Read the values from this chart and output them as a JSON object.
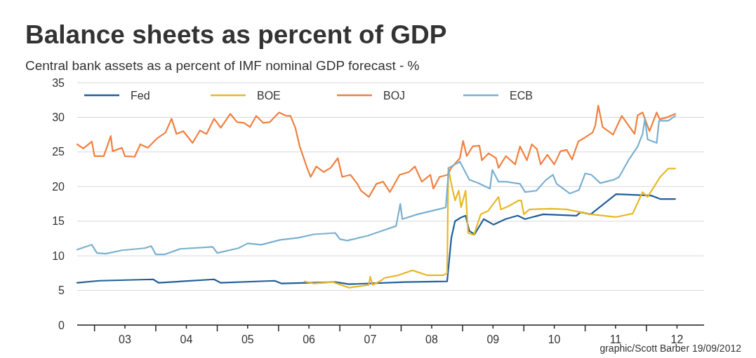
{
  "chart_data": {
    "type": "line",
    "title": "Balance sheets as percent of GDP",
    "subtitle": "Central bank assets as a percent of IMF nominal GDP forecast - %",
    "annotations": [
      "graphic/Scott Barber 19/09/2012"
    ],
    "xlim": [
      "2002-09-20",
      "2012-12-09"
    ],
    "xticks": [
      {
        "value": "2003-01-01",
        "label": null
      },
      {
        "value": "2003-07-01",
        "label": "03"
      },
      {
        "value": "2004-01-01",
        "label": null
      },
      {
        "value": "2004-07-01",
        "label": "04"
      },
      {
        "value": "2005-01-01",
        "label": null
      },
      {
        "value": "2005-07-01",
        "label": "05"
      },
      {
        "value": "2006-01-01",
        "label": null
      },
      {
        "value": "2006-07-01",
        "label": "06"
      },
      {
        "value": "2007-01-01",
        "label": null
      },
      {
        "value": "2007-07-01",
        "label": "07"
      },
      {
        "value": "2008-01-01",
        "label": null
      },
      {
        "value": "2008-07-01",
        "label": "08"
      },
      {
        "value": "2009-01-01",
        "label": null
      },
      {
        "value": "2009-07-01",
        "label": "09"
      },
      {
        "value": "2010-01-01",
        "label": null
      },
      {
        "value": "2010-07-01",
        "label": "10"
      },
      {
        "value": "2011-01-01",
        "label": null
      },
      {
        "value": "2011-07-01",
        "label": "11"
      },
      {
        "value": "2012-01-01",
        "label": null
      },
      {
        "value": "2012-07-01",
        "label": "12"
      }
    ],
    "ylim": [
      0,
      35
    ],
    "yticks": [
      0,
      5,
      10,
      15,
      20,
      25,
      30,
      35
    ],
    "grid": "y",
    "legend": "top",
    "marker": "none",
    "line_style": "solid",
    "series": [
      {
        "name": "Fed",
        "color": "#1f5f99",
        "x": [
          "2002-09-20",
          "2003-01-29",
          "2003-12-16",
          "2004-01-19",
          "2004-12-13",
          "2005-01-22",
          "2005-12-09",
          "2006-01-19",
          "2006-12-05",
          "2007-02-25",
          "2008-01-22",
          "2008-10-01",
          "2008-10-26",
          "2008-11-17",
          "2008-12-20",
          "2009-01-19",
          "2009-02-10",
          "2009-03-13",
          "2009-05-07",
          "2009-07-04",
          "2009-09-13",
          "2009-11-25",
          "2010-01-08",
          "2010-04-26",
          "2010-11-10",
          "2010-12-05",
          "2011-02-03",
          "2011-07-04",
          "2012-01-29",
          "2012-03-23",
          "2012-06-20"
        ],
        "values": [
          6.1,
          6.4,
          6.6,
          6.1,
          6.6,
          6.1,
          6.4,
          6.0,
          6.2,
          5.9,
          6.2,
          6.3,
          12.6,
          15.0,
          15.5,
          15.8,
          13.6,
          13.1,
          15.3,
          14.5,
          15.3,
          15.8,
          15.3,
          16.0,
          15.8,
          16.3,
          16.0,
          18.9,
          18.7,
          18.2,
          18.2
        ]
      },
      {
        "name": "BOE",
        "color": "#e8b828",
        "x": [
          "2006-06-05",
          "2006-07-29",
          "2006-11-21",
          "2007-02-25",
          "2007-06-23",
          "2007-07-01",
          "2007-07-15",
          "2007-09-09",
          "2007-09-23",
          "2007-12-16",
          "2008-03-09",
          "2008-06-02",
          "2008-09-09",
          "2008-10-01",
          "2008-10-08",
          "2008-10-26",
          "2008-11-17",
          "2008-12-09",
          "2008-12-23",
          "2009-01-19",
          "2009-02-03",
          "2009-03-09",
          "2009-04-19",
          "2009-06-02",
          "2009-08-03",
          "2009-08-17",
          "2009-10-04",
          "2009-12-02",
          "2009-12-16",
          "2010-01-01",
          "2010-02-03",
          "2010-06-09",
          "2010-09-13",
          "2011-02-03",
          "2011-07-04",
          "2011-10-11",
          "2011-12-09",
          "2012-01-08",
          "2012-03-23",
          "2012-05-10",
          "2012-06-20"
        ],
        "values": [
          6.3,
          6.0,
          6.2,
          5.4,
          5.8,
          7.0,
          5.8,
          6.5,
          6.8,
          7.2,
          7.9,
          7.2,
          7.2,
          7.5,
          22.7,
          20.4,
          18.0,
          19.4,
          17.0,
          19.4,
          13.3,
          13.0,
          16.0,
          16.5,
          18.5,
          16.7,
          17.2,
          18.0,
          18.0,
          16.0,
          16.7,
          16.8,
          16.7,
          16.0,
          15.6,
          16.1,
          19.2,
          18.5,
          21.4,
          22.6,
          22.6
        ]
      },
      {
        "name": "BOJ",
        "color": "#f08040",
        "x": [
          "2002-09-20",
          "2002-10-26",
          "2002-12-16",
          "2003-01-01",
          "2003-02-25",
          "2003-04-08",
          "2003-04-19",
          "2003-06-13",
          "2003-07-01",
          "2003-08-28",
          "2003-10-01",
          "2003-11-14",
          "2004-01-11",
          "2004-02-28",
          "2004-04-04",
          "2004-05-03",
          "2004-06-13",
          "2004-08-07",
          "2004-09-20",
          "2004-10-29",
          "2004-12-13",
          "2005-01-22",
          "2005-03-20",
          "2005-04-29",
          "2005-06-09",
          "2005-07-15",
          "2005-08-21",
          "2005-10-01",
          "2005-11-10",
          "2006-01-04",
          "2006-02-17",
          "2006-03-13",
          "2006-04-11",
          "2006-05-07",
          "2006-06-20",
          "2006-07-11",
          "2006-08-14",
          "2006-09-27",
          "2006-11-07",
          "2006-12-20",
          "2007-01-15",
          "2007-03-05",
          "2007-04-15",
          "2007-05-07",
          "2007-06-23",
          "2007-08-07",
          "2007-09-16",
          "2007-10-26",
          "2007-12-23",
          "2008-02-17",
          "2008-03-23",
          "2008-05-03",
          "2008-06-23",
          "2008-07-11",
          "2008-08-17",
          "2008-10-04",
          "2008-10-26",
          "2008-12-16",
          "2009-01-04",
          "2009-01-26",
          "2009-03-02",
          "2009-04-11",
          "2009-04-26",
          "2009-06-05",
          "2009-07-19",
          "2009-08-03",
          "2009-09-16",
          "2009-11-10",
          "2009-12-09",
          "2010-01-19",
          "2010-02-17",
          "2010-03-20",
          "2010-04-11",
          "2010-05-21",
          "2010-07-01",
          "2010-08-07",
          "2010-09-13",
          "2010-10-15",
          "2010-11-21",
          "2011-01-01",
          "2011-02-14",
          "2011-03-02",
          "2011-03-20",
          "2011-04-15",
          "2011-06-16",
          "2011-08-07",
          "2011-09-23",
          "2011-10-22",
          "2011-11-10",
          "2011-12-09",
          "2012-01-19",
          "2012-03-02",
          "2012-03-20",
          "2012-05-03",
          "2012-06-20"
        ],
        "values": [
          26.1,
          25.5,
          26.5,
          24.4,
          24.4,
          27.3,
          25.1,
          25.6,
          24.4,
          24.3,
          26.1,
          25.6,
          27.0,
          27.8,
          29.8,
          27.6,
          28.0,
          26.3,
          28.1,
          27.6,
          29.8,
          28.5,
          30.5,
          29.3,
          29.2,
          28.6,
          30.2,
          29.2,
          29.3,
          30.7,
          30.2,
          30.2,
          28.5,
          25.8,
          22.7,
          21.4,
          22.9,
          22.1,
          22.7,
          24.1,
          21.4,
          21.7,
          20.4,
          19.4,
          18.5,
          20.4,
          20.7,
          19.2,
          21.7,
          22.1,
          22.9,
          20.7,
          21.7,
          19.7,
          21.4,
          21.7,
          22.7,
          24.1,
          26.6,
          24.4,
          25.8,
          25.9,
          23.8,
          24.8,
          24.1,
          22.7,
          24.4,
          23.2,
          25.8,
          23.8,
          26.1,
          25.4,
          23.2,
          24.6,
          23.2,
          25.1,
          25.3,
          23.9,
          26.5,
          27.1,
          27.8,
          28.8,
          31.7,
          28.6,
          27.5,
          30.2,
          28.6,
          27.6,
          30.3,
          30.7,
          28.0,
          30.7,
          29.7,
          30.0,
          30.5
        ]
      },
      {
        "name": "ECB",
        "color": "#7ab0d0",
        "x": [
          "2002-09-20",
          "2002-12-16",
          "2003-01-15",
          "2003-03-09",
          "2003-06-13",
          "2003-10-26",
          "2003-12-05",
          "2004-01-01",
          "2004-02-21",
          "2004-05-25",
          "2004-12-05",
          "2005-01-01",
          "2005-05-07",
          "2005-07-01",
          "2005-09-20",
          "2006-01-11",
          "2006-04-29",
          "2006-07-29",
          "2006-12-05",
          "2007-01-01",
          "2007-02-14",
          "2007-06-16",
          "2007-09-09",
          "2007-12-02",
          "2007-12-27",
          "2008-01-08",
          "2008-04-08",
          "2008-08-25",
          "2008-09-23",
          "2008-10-11",
          "2008-11-17",
          "2008-12-16",
          "2009-02-10",
          "2009-04-04",
          "2009-06-13",
          "2009-06-27",
          "2009-08-03",
          "2009-09-16",
          "2009-12-09",
          "2010-01-08",
          "2010-03-16",
          "2010-05-10",
          "2010-06-23",
          "2010-07-15",
          "2010-10-01",
          "2010-11-25",
          "2011-01-01",
          "2011-02-07",
          "2011-04-01",
          "2011-06-23",
          "2011-07-22",
          "2011-09-16",
          "2011-11-10",
          "2011-12-09",
          "2011-12-23",
          "2012-01-08",
          "2012-03-02",
          "2012-03-16",
          "2012-05-10",
          "2012-06-20"
        ],
        "values": [
          10.9,
          11.6,
          10.4,
          10.3,
          10.8,
          11.1,
          11.4,
          10.2,
          10.2,
          11.0,
          11.3,
          10.4,
          11.1,
          11.8,
          11.6,
          12.3,
          12.6,
          13.1,
          13.3,
          12.4,
          12.2,
          12.9,
          13.6,
          14.3,
          17.5,
          15.3,
          16.0,
          16.8,
          17.0,
          22.7,
          23.2,
          23.6,
          21.0,
          20.5,
          19.7,
          22.4,
          20.7,
          20.7,
          20.4,
          19.2,
          19.4,
          20.9,
          21.7,
          20.4,
          19.0,
          19.5,
          21.9,
          21.7,
          20.5,
          21.0,
          21.4,
          23.8,
          25.8,
          27.6,
          29.8,
          26.8,
          26.3,
          29.5,
          29.5,
          30.2
        ]
      }
    ]
  }
}
